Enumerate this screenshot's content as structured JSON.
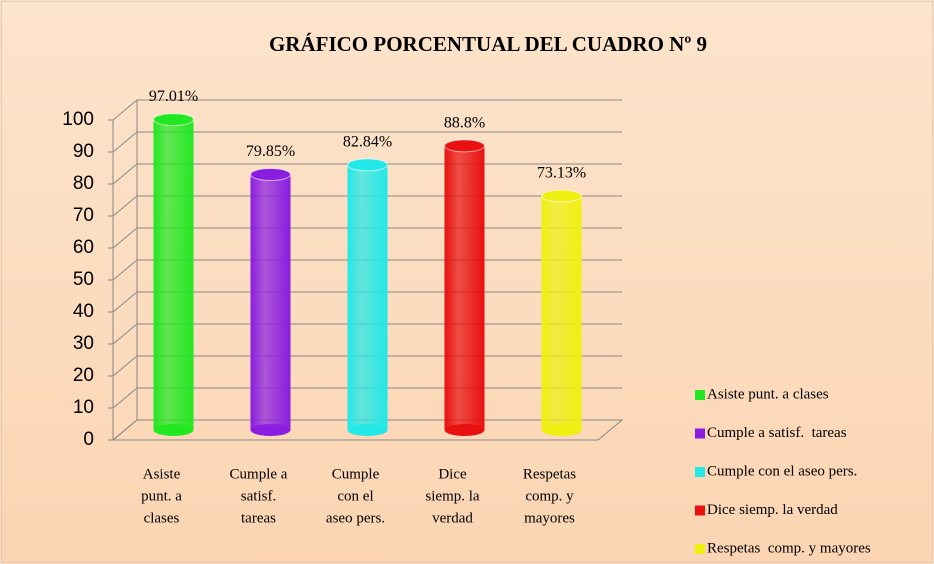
{
  "chart_data": {
    "type": "bar3d",
    "title": "GRÁFICO PORCENTUAL DEL CUADRO Nº 9",
    "categories": [
      [
        "Asiste",
        "punt. a",
        "clases"
      ],
      [
        "Cumple a",
        "satisf.",
        "tareas"
      ],
      [
        "Cumple",
        "con el",
        "aseo pers."
      ],
      [
        "Dice",
        "siemp. la",
        "verdad"
      ],
      [
        "Respetas",
        "comp. y",
        "mayores"
      ]
    ],
    "values": [
      97.01,
      79.85,
      82.84,
      88.8,
      73.13
    ],
    "value_labels": [
      "97.01%",
      "79.85%",
      "82.84%",
      "88.8%",
      "73.13%"
    ],
    "colors": [
      "#22e822",
      "#8a1de0",
      "#22e8e8",
      "#e81010",
      "#f0f010"
    ],
    "legend": [
      "Asiste punt. a clases",
      "Cumple a satisf.  tareas",
      "Cumple con el aseo pers.",
      "Dice siemp. la verdad",
      "Respetas  comp. y mayores"
    ],
    "ylim": [
      0,
      100
    ],
    "yticks": [
      0,
      10,
      20,
      30,
      40,
      50,
      60,
      70,
      80,
      90,
      100
    ],
    "grid": true
  }
}
